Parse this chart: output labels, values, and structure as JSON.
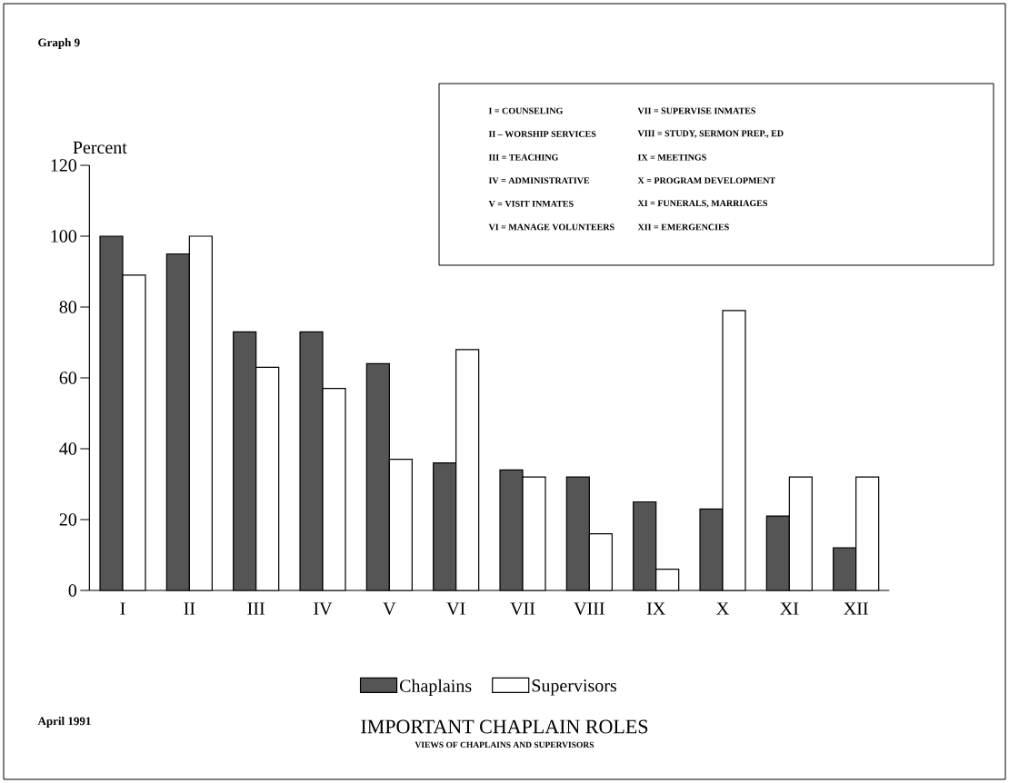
{
  "chart_data": {
    "type": "bar",
    "title": "IMPORTANT CHAPLAIN ROLES",
    "subtitle": "VIEWS OF CHAPLAINS AND SUPERVISORS",
    "ylabel": "Percent",
    "categories": [
      "I",
      "II",
      "III",
      "IV",
      "V",
      "VI",
      "VII",
      "VIII",
      "IX",
      "X",
      "XI",
      "XII"
    ],
    "series": [
      {
        "name": "Chaplains",
        "color": "#555555",
        "values": [
          100,
          95,
          73,
          73,
          64,
          36,
          34,
          32,
          25,
          23,
          21,
          12
        ]
      },
      {
        "name": "Supervisors",
        "color": "#ffffff",
        "values": [
          89,
          100,
          63,
          57,
          37,
          68,
          32,
          16,
          6,
          79,
          32,
          32
        ]
      }
    ],
    "ylim": [
      0,
      120
    ],
    "yticks": [
      0,
      20,
      40,
      60,
      80,
      100,
      120
    ],
    "grid": false,
    "legend": "bottom",
    "annotations": [
      "Graph 9",
      "April 1991",
      "I = COUNSELING",
      "II – WORSHIP SERVICES",
      "III = TEACHING",
      "IV = ADMINISTRATIVE",
      "V = VISIT INMATES",
      "VI = MANAGE VOLUNTEERS",
      "VII = SUPERVISE INMATES",
      "VIII = STUDY, SERMON PREP., ED",
      "IX = MEETINGS",
      "X = PROGRAM DEVELOPMENT",
      "XI = FUNERALS, MARRIAGES",
      "XII = EMERGENCIES"
    ]
  }
}
